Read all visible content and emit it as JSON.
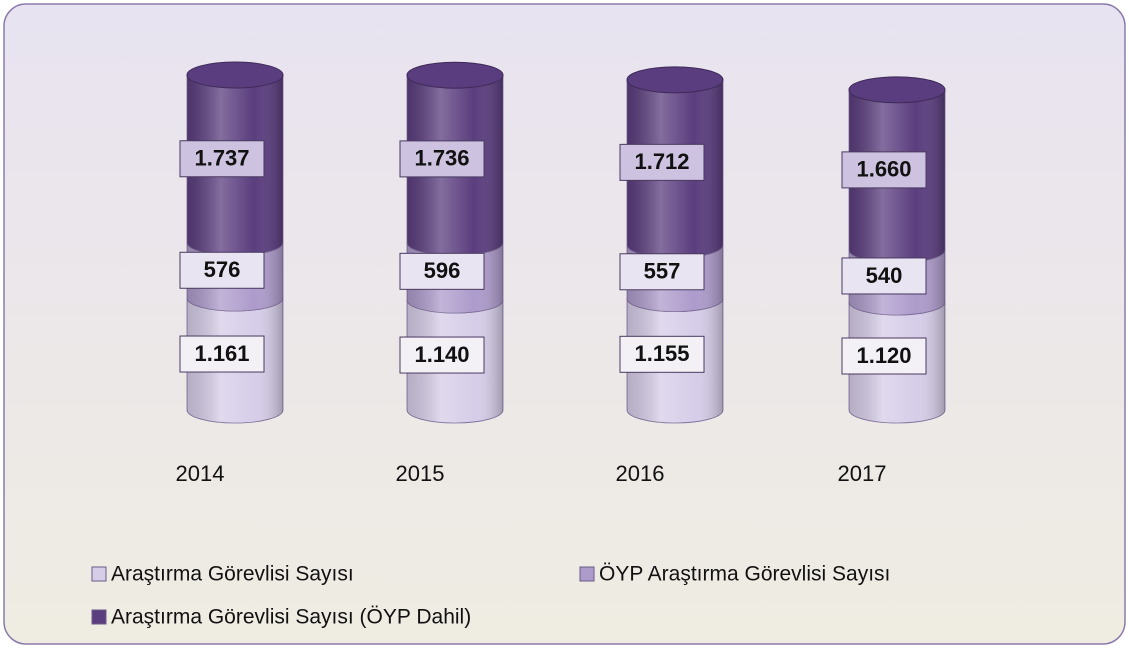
{
  "chart_data": {
    "type": "stacked_cylinder",
    "categories": [
      "2014",
      "2015",
      "2016",
      "2017"
    ],
    "series": [
      {
        "name": "Araştırma Görevlisi Sayısı",
        "color": "#d6cde8",
        "values": [
          1161,
          1140,
          1155,
          1120
        ],
        "value_labels": [
          "1.161",
          "1.140",
          "1.155",
          "1.120"
        ]
      },
      {
        "name": "ÖYP Araştırma Görevlisi Sayısı",
        "color": "#ad9bcb",
        "values": [
          576,
          596,
          557,
          540
        ]
      },
      {
        "name": "Araştırma Görevlisi Sayısı (ÖYP Dahil)",
        "color": "#5a3d7e",
        "values": [
          1737,
          1736,
          1712,
          1660
        ],
        "value_labels": [
          "1.737",
          "1.736",
          "1.712",
          "1.660"
        ]
      }
    ]
  }
}
